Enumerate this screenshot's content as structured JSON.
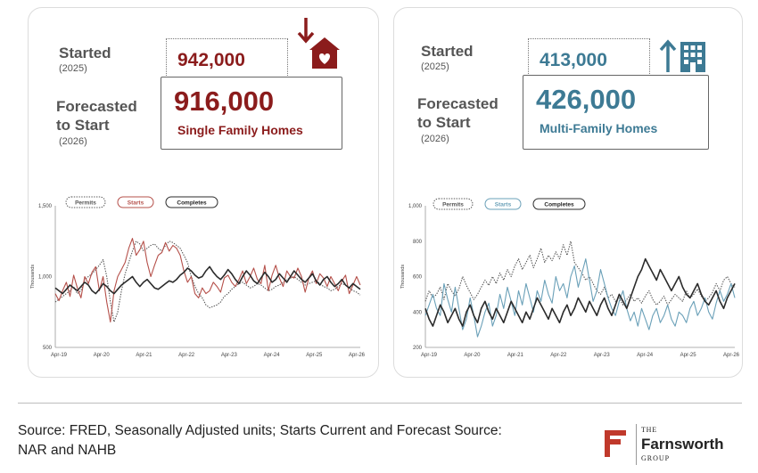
{
  "panels": {
    "single_family": {
      "started_label": "Started",
      "started_year": "(2025)",
      "started_value": "942,000",
      "forecast_label_1": "Forecasted",
      "forecast_label_2": "to Start",
      "forecast_year": "(2026)",
      "forecast_value": "916,000",
      "forecast_caption": "Single Family Homes",
      "icon": "house-down-arrow-icon",
      "accent_color": "#8b1c1c"
    },
    "multi_family": {
      "started_label": "Started",
      "started_year": "(2025)",
      "started_value": "413,000",
      "forecast_label_1": "Forecasted",
      "forecast_label_2": "to Start",
      "forecast_year": "(2026)",
      "forecast_value": "426,000",
      "forecast_caption": "Multi-Family Homes",
      "icon": "building-up-arrow-icon",
      "accent_color": "#3d7a94"
    }
  },
  "chart_data": [
    {
      "type": "line",
      "ylabel": "Thousands",
      "ylim": [
        500,
        1500
      ],
      "yticks": [
        500,
        1000,
        1500
      ],
      "yticklabels": [
        "500",
        "1,000",
        "1,500"
      ],
      "xticklabels": [
        "Apr-19",
        "Apr-20",
        "Apr-21",
        "Apr-22",
        "Apr-23",
        "Apr-24",
        "Apr-25",
        "Apr-26"
      ],
      "legend": "top",
      "series": [
        {
          "name": "Permits",
          "style": "dotted",
          "color": "#555555",
          "values": [
            820,
            840,
            860,
            880,
            900,
            930,
            880,
            900,
            980,
            1000,
            1020,
            1050,
            1080,
            1120,
            1000,
            820,
            680,
            750,
            900,
            1020,
            1100,
            1180,
            1250,
            1230,
            1180,
            1200,
            1220,
            1230,
            1200,
            1180,
            1220,
            1250,
            1240,
            1220,
            1200,
            1150,
            1100,
            1000,
            930,
            880,
            850,
            800,
            780,
            790,
            800,
            820,
            860,
            880,
            910,
            930,
            950,
            960,
            940,
            920,
            930,
            950,
            940,
            920,
            900,
            910,
            930,
            940,
            960,
            980,
            990,
            1000,
            980,
            960,
            940,
            950,
            960,
            970,
            950,
            930,
            920,
            900,
            910,
            930,
            950,
            940,
            920,
            900,
            890,
            870
          ]
        },
        {
          "name": "Starts",
          "style": "solid",
          "color": "#b5504a",
          "values": [
            880,
            830,
            900,
            960,
            860,
            1010,
            920,
            850,
            1000,
            950,
            1030,
            1070,
            900,
            1000,
            820,
            680,
            900,
            1000,
            1050,
            1100,
            1200,
            1270,
            1150,
            1190,
            1250,
            1100,
            1000,
            1080,
            1150,
            1170,
            1240,
            1180,
            1220,
            1200,
            1150,
            1040,
            960,
            1000,
            880,
            850,
            920,
            880,
            900,
            960,
            930,
            890,
            990,
            1010,
            960,
            930,
            980,
            1040,
            950,
            1000,
            1060,
            980,
            950,
            1080,
            900,
            1010,
            1080,
            990,
            930,
            1040,
            1000,
            990,
            1060,
            1000,
            890,
            990,
            1040,
            950,
            1020,
            990,
            930,
            1000,
            950,
            900,
            970,
            1010,
            880,
            940,
            1000,
            940
          ]
        },
        {
          "name": "Completes",
          "style": "solid",
          "color": "#2b2b2b",
          "values": [
            920,
            900,
            880,
            910,
            940,
            920,
            900,
            930,
            960,
            940,
            900,
            880,
            910,
            950,
            930,
            900,
            880,
            910,
            940,
            960,
            980,
            1000,
            960,
            930,
            960,
            980,
            950,
            920,
            910,
            930,
            950,
            970,
            960,
            980,
            1010,
            1030,
            1060,
            1040,
            1010,
            990,
            1000,
            1040,
            1070,
            1030,
            1000,
            980,
            1010,
            1050,
            1020,
            980,
            950,
            1000,
            1040,
            1010,
            970,
            950,
            990,
            1030,
            1000,
            960,
            980,
            1020,
            990,
            960,
            1000,
            1040,
            1010,
            980,
            960,
            990,
            1020,
            970,
            940,
            980,
            1000,
            960,
            930,
            950,
            980,
            940,
            920,
            950,
            930,
            910
          ]
        }
      ]
    },
    {
      "type": "line",
      "ylabel": "Thousands",
      "ylim": [
        200,
        1000
      ],
      "yticks": [
        200,
        400,
        600,
        800,
        1000
      ],
      "yticklabels": [
        "200",
        "400",
        "600",
        "800",
        "1,000"
      ],
      "xticklabels": [
        "Apr-19",
        "Apr-20",
        "Apr-21",
        "Apr-22",
        "Apr-23",
        "Apr-24",
        "Apr-25",
        "Apr-26"
      ],
      "legend": "top",
      "series": [
        {
          "name": "Permits",
          "style": "dotted",
          "color": "#555555",
          "values": [
            460,
            520,
            480,
            500,
            540,
            470,
            560,
            520,
            490,
            530,
            600,
            550,
            510,
            470,
            500,
            540,
            580,
            550,
            600,
            560,
            620,
            580,
            640,
            600,
            660,
            700,
            640,
            680,
            720,
            650,
            700,
            760,
            680,
            720,
            690,
            740,
            700,
            780,
            720,
            800,
            680,
            650,
            620,
            580,
            600,
            560,
            520,
            500,
            540,
            480,
            500,
            460,
            480,
            440,
            470,
            500,
            460,
            480,
            450,
            490,
            520,
            470,
            440,
            460,
            490,
            440,
            470,
            500,
            480,
            460,
            520,
            480,
            500,
            530,
            490,
            460,
            480,
            510,
            560,
            520,
            580,
            600,
            560,
            540
          ]
        },
        {
          "name": "Starts",
          "style": "solid",
          "color": "#6aa0b8",
          "values": [
            380,
            440,
            500,
            420,
            380,
            560,
            470,
            400,
            540,
            420,
            300,
            360,
            480,
            380,
            260,
            320,
            400,
            450,
            320,
            380,
            500,
            420,
            540,
            460,
            380,
            520,
            440,
            560,
            480,
            400,
            520,
            460,
            580,
            500,
            450,
            600,
            520,
            560,
            480,
            600,
            660,
            540,
            620,
            700,
            580,
            460,
            520,
            640,
            560,
            480,
            420,
            380,
            460,
            520,
            420,
            350,
            400,
            320,
            420,
            360,
            300,
            380,
            420,
            340,
            380,
            440,
            360,
            320,
            400,
            380,
            340,
            420,
            460,
            380,
            420,
            480,
            400,
            360,
            450,
            520,
            460,
            500,
            560,
            480
          ]
        },
        {
          "name": "Completes",
          "style": "solid",
          "color": "#2b2b2b",
          "values": [
            420,
            360,
            320,
            380,
            440,
            400,
            340,
            380,
            420,
            360,
            320,
            400,
            440,
            380,
            340,
            420,
            460,
            400,
            360,
            420,
            380,
            340,
            400,
            460,
            420,
            380,
            340,
            400,
            360,
            420,
            480,
            440,
            400,
            360,
            420,
            380,
            340,
            400,
            440,
            380,
            420,
            480,
            440,
            400,
            460,
            420,
            380,
            440,
            480,
            420,
            380,
            440,
            500,
            460,
            420,
            480,
            540,
            600,
            640,
            700,
            660,
            620,
            580,
            640,
            600,
            560,
            520,
            560,
            600,
            540,
            500,
            480,
            520,
            560,
            500,
            460,
            440,
            480,
            520,
            460,
            420,
            480,
            520,
            560
          ]
        }
      ]
    }
  ],
  "footer": {
    "source_line_1": "Source: FRED, Seasonally Adjusted units; Starts Current and Forecast Source:",
    "source_line_2": "NAR and NAHB",
    "brand_the": "THE",
    "brand_name": "Farnsworth",
    "brand_group": "GROUP",
    "brand_color": "#c0392b"
  }
}
